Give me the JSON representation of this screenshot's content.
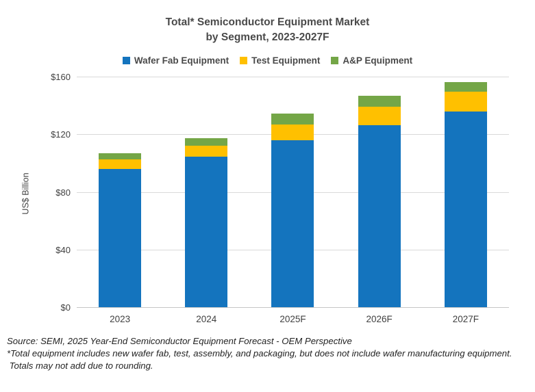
{
  "title": {
    "line1": "Total* Semiconductor Equipment Market",
    "line2": "by Segment, 2023-2027F"
  },
  "y_axis": {
    "title": "US$ Billion"
  },
  "chart_data": {
    "type": "bar",
    "stacked": true,
    "title": "Total* Semiconductor Equipment Market by Segment, 2023-2027F",
    "xlabel": "",
    "ylabel": "US$ Billion",
    "ylim": [
      0,
      160
    ],
    "ytick_interval": 40,
    "ytick_labels": [
      "$0",
      "$40",
      "$80",
      "$120",
      "$160"
    ],
    "grid": true,
    "legend_position": "top",
    "categories": [
      "2023",
      "2024",
      "2025F",
      "2026F",
      "2027F"
    ],
    "series": [
      {
        "name": "Wafer Fab Equipment",
        "color": "#1474BE",
        "values": [
          96,
          104.5,
          116,
          126.5,
          136
        ]
      },
      {
        "name": "Test Equipment",
        "color": "#FFC000",
        "values": [
          6.5,
          7.5,
          11,
          12.5,
          13.5
        ]
      },
      {
        "name": "A&P Equipment",
        "color": "#74A647",
        "values": [
          4.5,
          5.5,
          7.5,
          7.5,
          6.5
        ]
      }
    ],
    "totals": [
      107,
      117.5,
      134.5,
      146.5,
      156
    ]
  },
  "footer": {
    "lines": [
      "Source: SEMI, 2025 Year-End Semiconductor Equipment Forecast - OEM Perspective",
      "*Total equipment includes new wafer fab, test, assembly, and packaging, but does not include wafer manufacturing equipment.",
      " Totals may not add due to rounding."
    ]
  }
}
